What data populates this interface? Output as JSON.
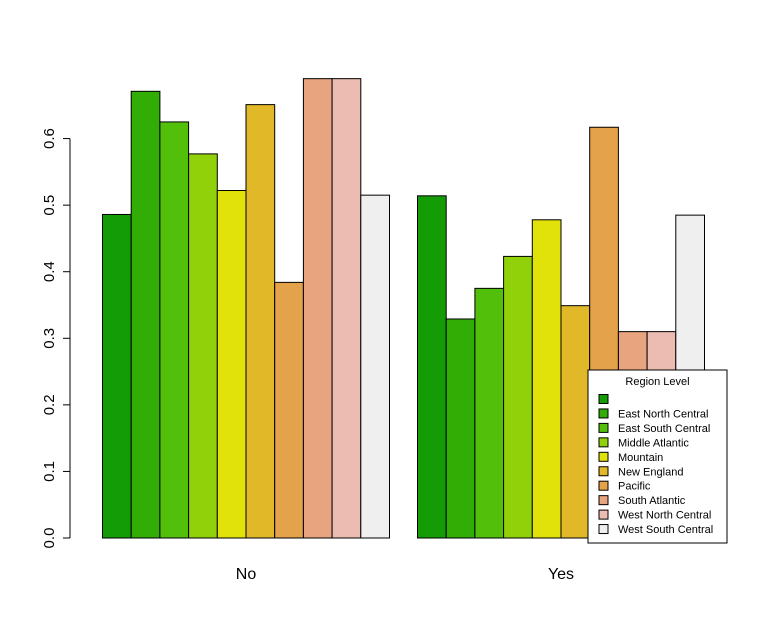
{
  "chart_data": {
    "type": "bar",
    "categories": [
      "No",
      "Yes"
    ],
    "ylim": [
      0,
      0.7
    ],
    "yticks": [
      "0.0",
      "0.1",
      "0.2",
      "0.3",
      "0.4",
      "0.5",
      "0.6"
    ],
    "grid": false,
    "legend": {
      "title": "Region Level",
      "placement": "bottom-right",
      "entries": [
        "",
        "East North Central",
        "East South Central",
        "Middle Atlantic",
        "Mountain",
        "New England",
        "Pacific",
        "South Atlantic",
        "West North Central",
        "West South Central"
      ]
    },
    "series": [
      {
        "name": "",
        "color": "#149C06",
        "values": [
          0.486,
          0.514
        ]
      },
      {
        "name": "East North Central",
        "color": "#32AD06",
        "values": [
          0.671,
          0.329
        ]
      },
      {
        "name": "East South Central",
        "color": "#52C00A",
        "values": [
          0.625,
          0.375
        ]
      },
      {
        "name": "Middle Atlantic",
        "color": "#90D10A",
        "values": [
          0.577,
          0.423
        ]
      },
      {
        "name": "Mountain",
        "color": "#E0E20A",
        "values": [
          0.522,
          0.478
        ]
      },
      {
        "name": "New England",
        "color": "#E0B828",
        "values": [
          0.651,
          0.349
        ]
      },
      {
        "name": "Pacific",
        "color": "#E4A24B",
        "values": [
          0.384,
          0.617
        ]
      },
      {
        "name": "South Atlantic",
        "color": "#E8A47E",
        "values": [
          0.69,
          0.31
        ]
      },
      {
        "name": "West North Central",
        "color": "#ECBBB2",
        "values": [
          0.69,
          0.31
        ]
      },
      {
        "name": "West South Central",
        "color": "#EFEFEF",
        "values": [
          0.515,
          0.485
        ]
      }
    ]
  }
}
